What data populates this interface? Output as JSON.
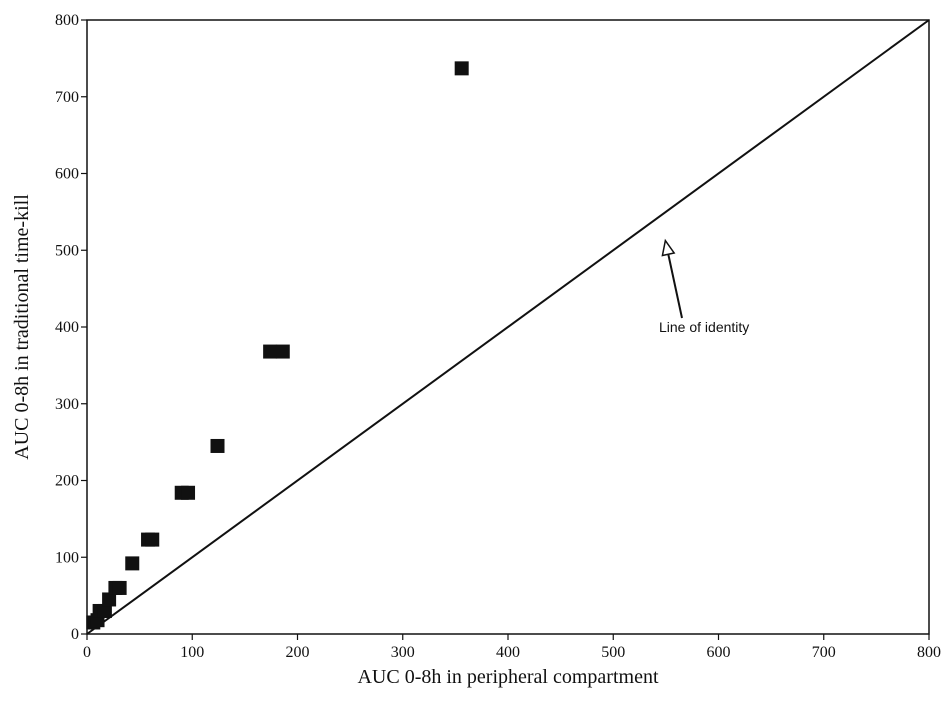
{
  "chart_data": {
    "type": "scatter",
    "title": "",
    "xlabel": "AUC 0-8h in peripheral compartment",
    "ylabel": "AUC 0-8h in traditional time-kill",
    "xlim": [
      0,
      800
    ],
    "ylim": [
      0,
      800
    ],
    "xticks": [
      0,
      100,
      200,
      300,
      400,
      500,
      600,
      700,
      800
    ],
    "yticks": [
      0,
      100,
      200,
      300,
      400,
      500,
      600,
      700,
      800
    ],
    "grid": false,
    "legend": "none",
    "series": [
      {
        "marker": "square",
        "color": "#111111",
        "points": [
          {
            "x": 6,
            "y": 15
          },
          {
            "x": 10,
            "y": 18
          },
          {
            "x": 12,
            "y": 30
          },
          {
            "x": 17,
            "y": 30
          },
          {
            "x": 21,
            "y": 45
          },
          {
            "x": 27,
            "y": 60
          },
          {
            "x": 31,
            "y": 60
          },
          {
            "x": 43,
            "y": 92
          },
          {
            "x": 58,
            "y": 123
          },
          {
            "x": 62,
            "y": 123
          },
          {
            "x": 90,
            "y": 184
          },
          {
            "x": 96,
            "y": 184
          },
          {
            "x": 124,
            "y": 245
          },
          {
            "x": 174,
            "y": 368
          },
          {
            "x": 186,
            "y": 368
          },
          {
            "x": 356,
            "y": 737
          }
        ]
      }
    ],
    "reference_line": {
      "from": [
        0,
        0
      ],
      "to": [
        800,
        800
      ],
      "color": "#111111"
    },
    "annotations": [
      {
        "text": "Line of identity",
        "target": [
          540,
          510
        ]
      }
    ]
  }
}
